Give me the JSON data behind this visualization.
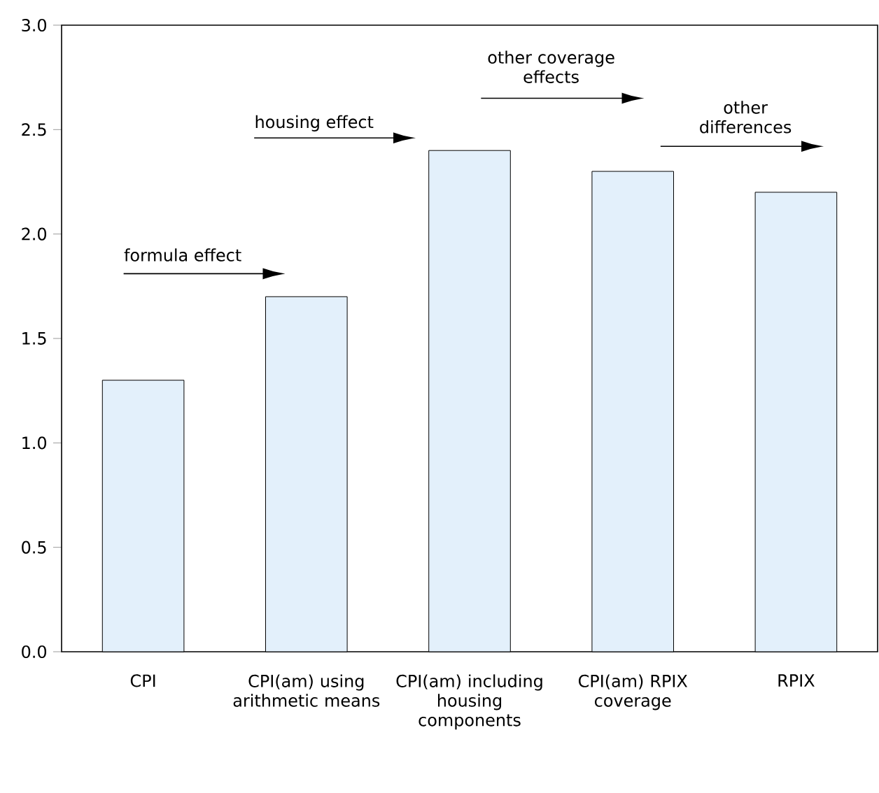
{
  "chart_data": {
    "type": "bar",
    "categories": [
      "CPI",
      "CPI(am) using arithmetic means",
      "CPI(am) including housing components",
      "CPI(am) RPIX coverage",
      "RPIX"
    ],
    "values": [
      1.3,
      1.7,
      2.4,
      2.3,
      2.2
    ],
    "color": "#e3f0fb",
    "ylim": [
      0,
      3
    ],
    "yticks": [
      {
        "value": 0,
        "label": "0.0"
      },
      {
        "value": 0.5,
        "label": "0.5"
      },
      {
        "value": 1,
        "label": "1.0"
      },
      {
        "value": 1.5,
        "label": "1.5"
      },
      {
        "value": 2,
        "label": "2.0"
      },
      {
        "value": 2.5,
        "label": "2.5"
      },
      {
        "value": 3,
        "label": "3.0"
      }
    ],
    "grid": false,
    "annotations": [
      "formula effect",
      "housing effect",
      "other coverage effects",
      "other differences"
    ]
  }
}
